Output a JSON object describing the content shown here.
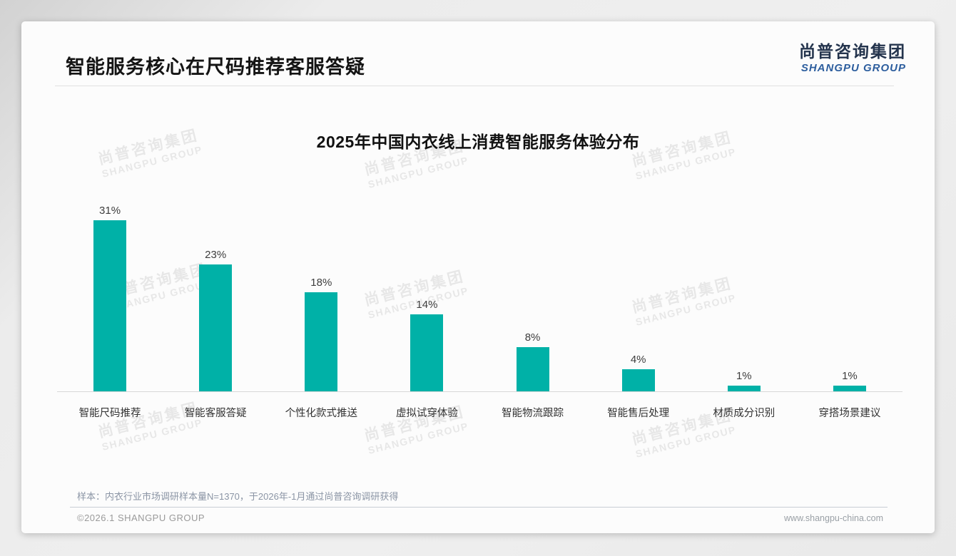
{
  "page": {
    "slide_title": "智能服务核心在尺码推荐客服答疑",
    "logo": {
      "cn": "尚普咨询集团",
      "en": "SHANGPU GROUP"
    },
    "watermark": {
      "line1": "尚普咨询集团",
      "line2": "SHANGPU GROUP"
    },
    "footnote": "样本：内衣行业市场调研样本量N=1370，于2026年-1月通过尚普咨询调研获得",
    "footer_left": "©2026.1 SHANGPU GROUP",
    "footer_right": "www.shangpu-china.com"
  },
  "colors": {
    "bar": "#00b1a7",
    "logo_cn": "#24344d",
    "logo_en": "#2d5e9e",
    "title_text": "#141414",
    "footnote_text": "#8b95a5"
  },
  "chart_data": {
    "type": "bar",
    "title": "2025年中国内衣线上消费智能服务体验分布",
    "categories": [
      "智能尺码推荐",
      "智能客服答疑",
      "个性化款式推送",
      "虚拟试穿体验",
      "智能物流跟踪",
      "智能售后处理",
      "材质成分识别",
      "穿搭场景建议"
    ],
    "values": [
      31,
      23,
      18,
      14,
      8,
      4,
      1,
      1
    ],
    "unit": "%",
    "xlabel": "",
    "ylabel": "",
    "ylim": [
      0,
      35
    ],
    "grid": false,
    "legend": "none",
    "bar_color": "#00b1a7"
  }
}
